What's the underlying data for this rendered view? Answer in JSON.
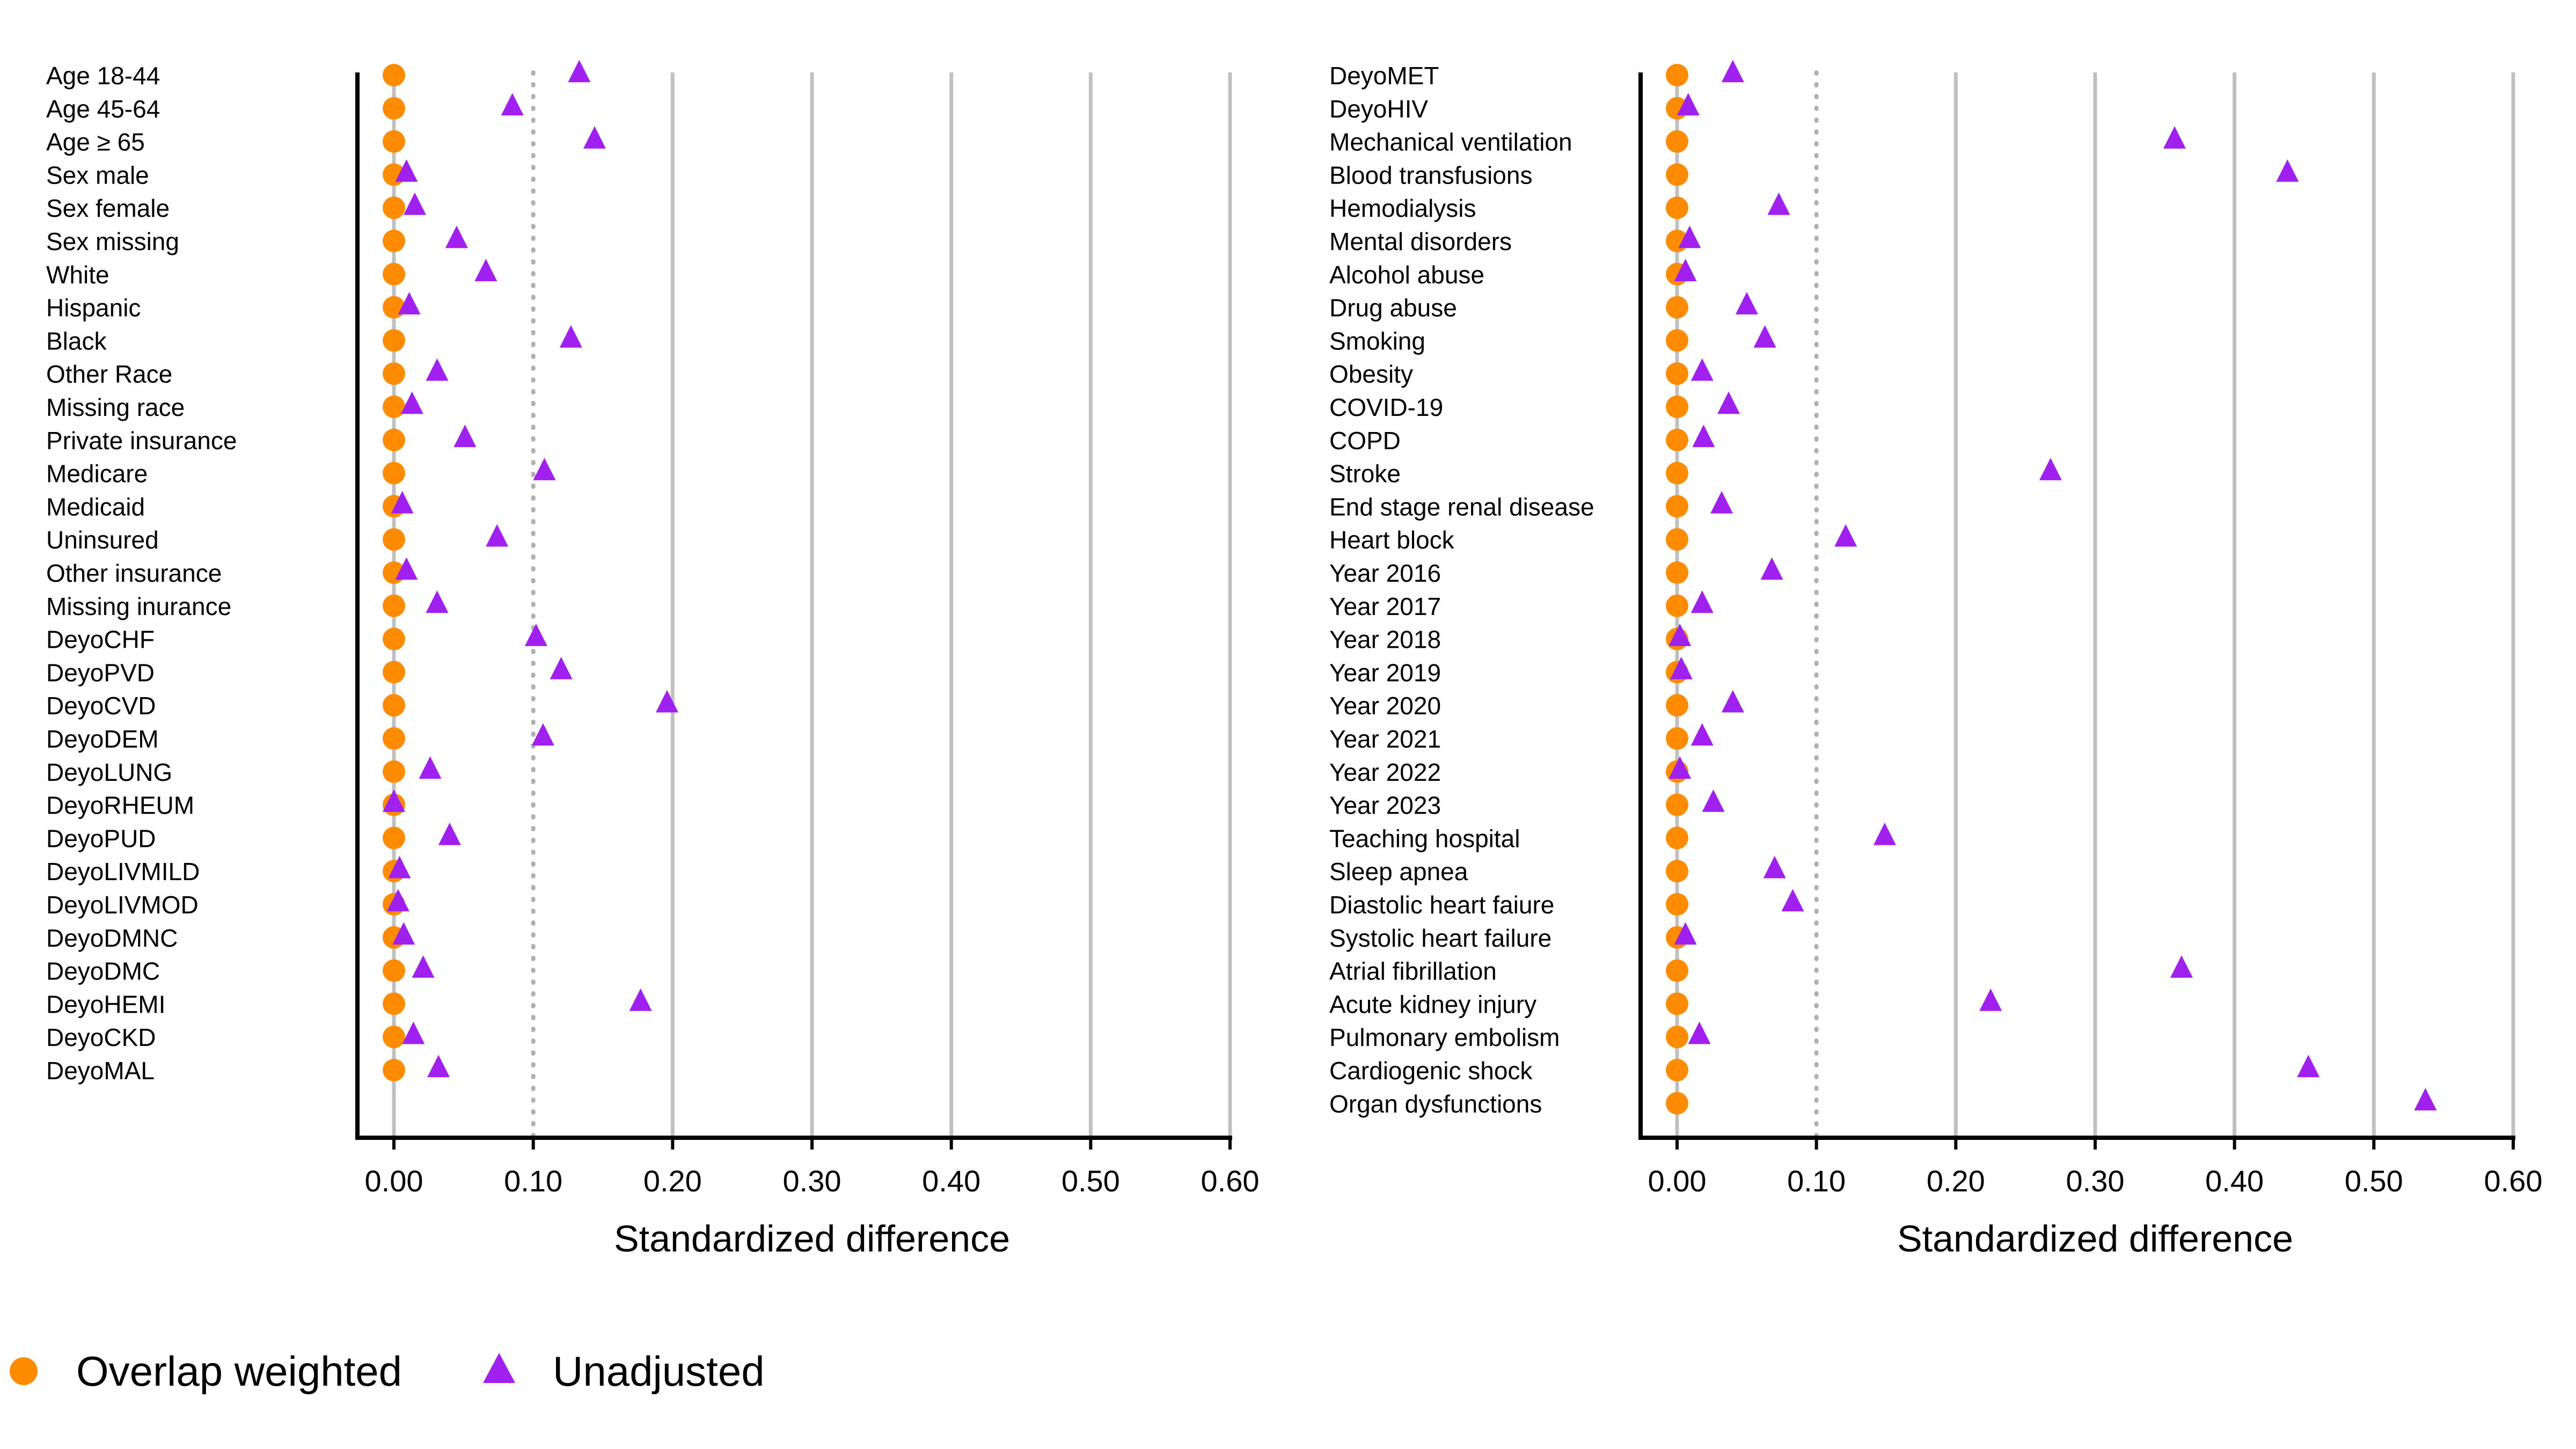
{
  "chart_data": [
    {
      "type": "scatter",
      "panel": "left",
      "xlabel": "Standardized difference",
      "xlim": [
        0,
        0.6
      ],
      "x_ticks": [
        "0.00",
        "0.10",
        "0.20",
        "0.30",
        "0.40",
        "0.50",
        "0.60"
      ],
      "threshold": 0.1,
      "grid": true,
      "categories": [
        "Age 18-44",
        "Age 45-64",
        "Age ≥ 65",
        "Sex male",
        "Sex female",
        "Sex missing",
        "White",
        "Hispanic",
        "Black",
        "Other Race",
        "Missing race",
        "Private insurance",
        "Medicare",
        "Medicaid",
        "Uninsured",
        "Other insurance",
        "Missing inurance",
        "DeyoCHF",
        "DeyoPVD",
        "DeyoCVD",
        "DeyoDEM",
        "DeyoLUNG",
        "DeyoRHEUM",
        "DeyoPUD",
        "DeyoLIVMILD",
        "DeyoLIVMOD",
        "DeyoDMNC",
        "DeyoDMC",
        "DeyoHEMI",
        "DeyoCKD",
        "DeyoMAL"
      ],
      "series": [
        {
          "name": "Overlap weighted",
          "color": "#ff8c00",
          "marker": "circle",
          "values": [
            0,
            0,
            0,
            0,
            0,
            0,
            0,
            0,
            0,
            0,
            0,
            0,
            0,
            0,
            0,
            0,
            0,
            0,
            0,
            0,
            0,
            0,
            0,
            0,
            0,
            0,
            0,
            0,
            0,
            0,
            0
          ]
        },
        {
          "name": "Unadjusted",
          "color": "#a020f0",
          "marker": "triangle",
          "values": [
            0.133,
            0.085,
            0.144,
            0.009,
            0.015,
            0.045,
            0.066,
            0.011,
            0.127,
            0.031,
            0.013,
            0.051,
            0.108,
            0.006,
            0.074,
            0.009,
            0.031,
            0.102,
            0.12,
            0.196,
            0.107,
            0.026,
            0.0,
            0.04,
            0.004,
            0.003,
            0.007,
            0.021,
            0.177,
            0.014,
            0.032
          ]
        }
      ]
    },
    {
      "type": "scatter",
      "panel": "right",
      "xlabel": "Standardized difference",
      "xlim": [
        0,
        0.6
      ],
      "x_ticks": [
        "0.00",
        "0.10",
        "0.20",
        "0.30",
        "0.40",
        "0.50",
        "0.60"
      ],
      "threshold": 0.1,
      "grid": true,
      "categories": [
        "DeyoMET",
        "DeyoHIV",
        "Mechanical ventilation",
        "Blood transfusions",
        "Hemodialysis",
        "Mental disorders",
        "Alcohol abuse",
        "Drug abuse",
        "Smoking",
        "Obesity",
        "COVID-19",
        "COPD",
        "Stroke",
        "End stage renal disease",
        "Heart block",
        "Year 2016",
        "Year 2017",
        "Year 2018",
        "Year 2019",
        "Year 2020",
        "Year 2021",
        "Year 2022",
        "Year 2023",
        "Teaching hospital",
        "Sleep apnea",
        "Diastolic heart faiure",
        "Systolic heart failure",
        "Atrial fibrillation",
        "Acute kidney injury",
        "Pulmonary embolism",
        "Cardiogenic shock",
        "Organ dysfunctions"
      ],
      "series": [
        {
          "name": "Overlap weighted",
          "color": "#ff8c00",
          "marker": "circle",
          "values": [
            0,
            0,
            0,
            0,
            0,
            0,
            0,
            0,
            0,
            0,
            0,
            0,
            0,
            0,
            0,
            0,
            0,
            0,
            0,
            0,
            0,
            0,
            0,
            0,
            0,
            0,
            0,
            0,
            0,
            0,
            0,
            0
          ]
        },
        {
          "name": "Unadjusted",
          "color": "#a020f0",
          "marker": "triangle",
          "values": [
            0.04,
            0.008,
            0.357,
            0.438,
            0.073,
            0.009,
            0.006,
            0.05,
            0.063,
            0.018,
            0.037,
            0.019,
            0.268,
            0.032,
            0.121,
            0.068,
            0.018,
            0.002,
            0.003,
            0.04,
            0.018,
            0.002,
            0.026,
            0.149,
            0.07,
            0.083,
            0.006,
            0.362,
            0.225,
            0.016,
            0.453,
            0.537
          ]
        }
      ]
    }
  ],
  "legend": [
    {
      "label": "Overlap weighted",
      "color": "#ff8c00",
      "marker": "circle"
    },
    {
      "label": "Unadjusted",
      "color": "#a020f0",
      "marker": "triangle"
    }
  ]
}
